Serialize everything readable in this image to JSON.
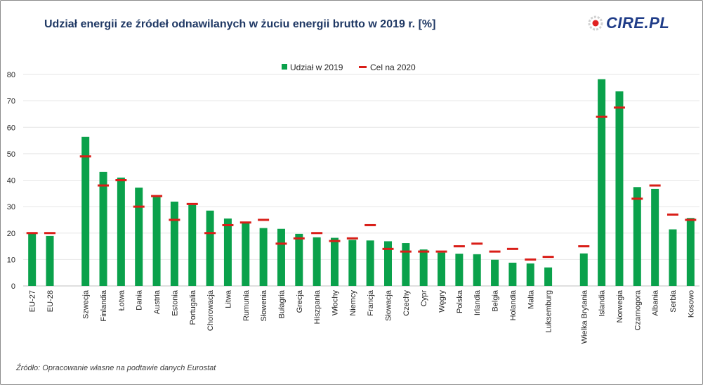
{
  "title": "Udział energii ze źródeł odnawilanych w żuciu energii brutto w 2019 r. [%]",
  "logo_text": "CIRE.PL",
  "source": "Źródło: Opracowanie własne na podtawie danych Eurostat",
  "colors": {
    "bar": "#0aa14b",
    "target": "#d91e18",
    "title": "#1f3864",
    "grid": "#e6e6e6"
  },
  "chart_data": {
    "type": "bar",
    "title": "Udział energii ze źródeł odnawilanych w żuciu energii brutto w 2019 r. [%]",
    "ylim": [
      0,
      80
    ],
    "yticks": [
      "0",
      "10",
      "20",
      "30",
      "40",
      "50",
      "60",
      "70",
      "80"
    ],
    "legend_position": "top-center",
    "categories": [
      "EU-27",
      "EU-28",
      "",
      "Szwecja",
      "Finlandia",
      "Łotwa",
      "Dania",
      "Austria",
      "Estonia",
      "Portugalia",
      "Chorowacja",
      "Litwa",
      "Rumunia",
      "Słowenia",
      "Bułagria",
      "Grecja",
      "Hiszpania",
      "Włochy",
      "Niemcy",
      "Francja",
      "Słowacja",
      "Czechy",
      "Cypr",
      "Węgry",
      "Polska",
      "Irlandia",
      "Belgia",
      "Holandia",
      "Malta",
      "Luksemburg",
      "",
      "Wielka Brytania",
      "Islandia",
      "Norwegia",
      "Czarnogora",
      "Albania",
      "Serbia",
      "Kosowo"
    ],
    "series": [
      {
        "name": "Udział w 2019",
        "kind": "bar",
        "values": [
          19.7,
          18.9,
          null,
          56.4,
          43.1,
          41.0,
          37.2,
          33.6,
          31.9,
          30.6,
          28.5,
          25.5,
          24.3,
          21.9,
          21.6,
          19.7,
          18.4,
          18.2,
          17.4,
          17.2,
          16.9,
          16.2,
          13.8,
          12.6,
          12.2,
          12.0,
          9.9,
          8.8,
          8.5,
          7.0,
          null,
          12.3,
          78.2,
          73.6,
          37.4,
          36.7,
          21.4,
          25.7
        ]
      },
      {
        "name": "Cel na 2020",
        "kind": "target",
        "values": [
          20,
          20,
          null,
          49,
          38,
          40,
          30,
          34,
          25,
          31,
          20,
          23,
          24,
          25,
          16,
          18,
          20,
          17,
          18,
          23,
          14,
          13,
          13,
          13,
          15,
          16,
          13,
          14,
          10,
          11,
          null,
          15,
          64,
          67.5,
          33,
          38,
          27,
          25
        ]
      }
    ]
  }
}
